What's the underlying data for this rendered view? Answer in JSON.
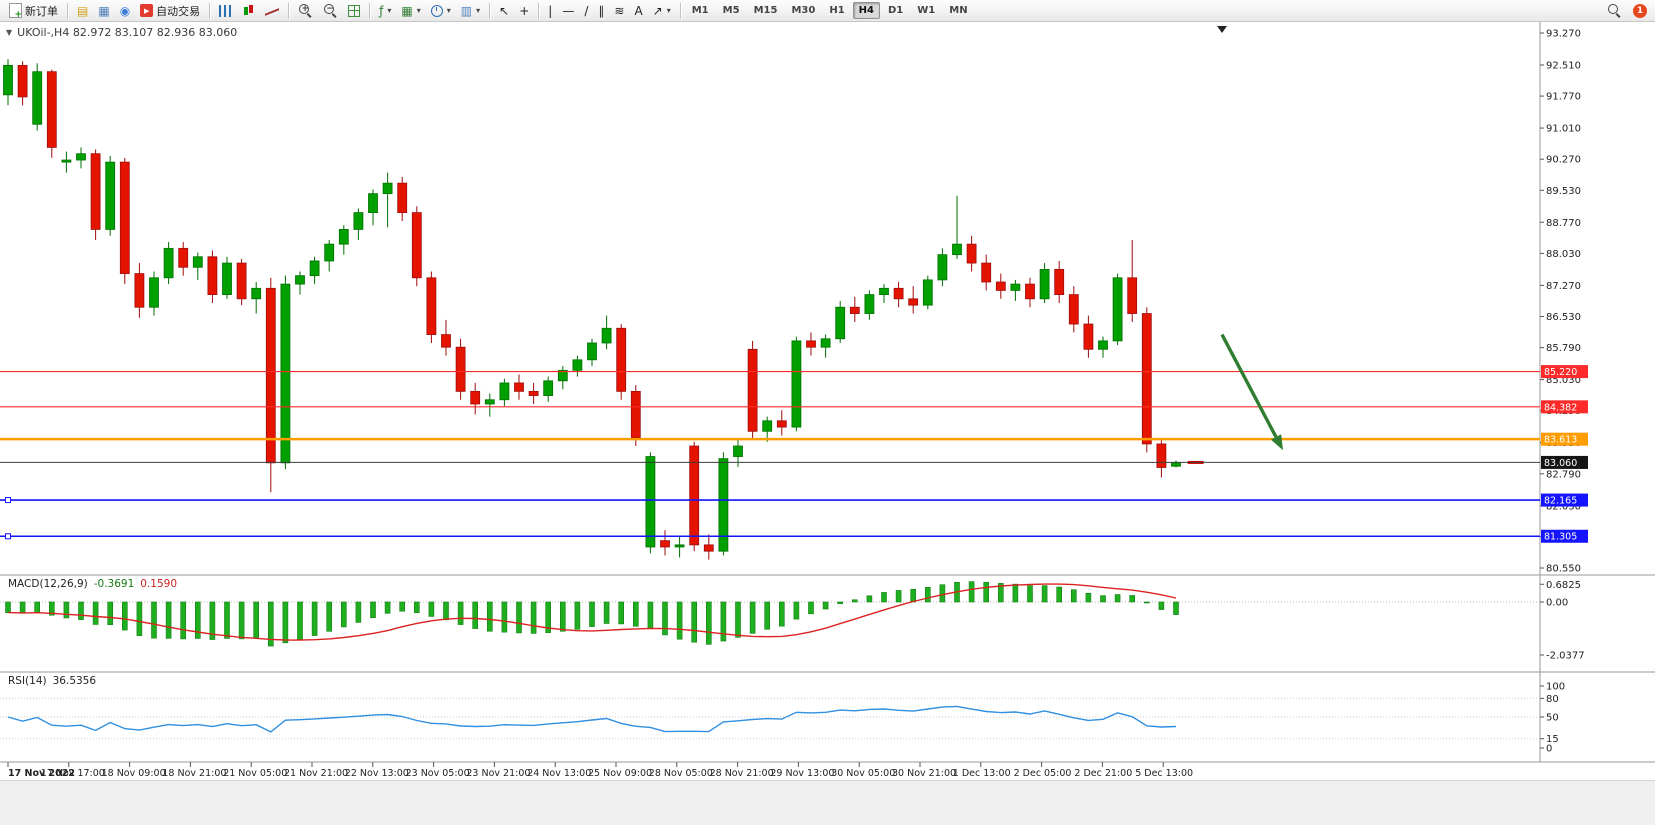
{
  "toolbar": {
    "caret_glyph": "▾",
    "left_items": [
      {
        "kind": "button",
        "name": "new-order-button",
        "shape": "doc",
        "label": "新订单"
      },
      {
        "kind": "divider"
      },
      {
        "kind": "icon",
        "name": "terminal-icon",
        "glyph": "▤",
        "color": "#d4a017"
      },
      {
        "kind": "icon",
        "name": "market-watch-icon",
        "glyph": "▦",
        "color": "#4a7ebb"
      },
      {
        "kind": "icon",
        "name": "community-icon",
        "glyph": "◉",
        "color": "#3b7dd8"
      },
      {
        "kind": "button",
        "name": "autotrading-button",
        "shape": "play-red",
        "label": "自动交易"
      },
      {
        "kind": "divider"
      },
      {
        "kind": "icon",
        "name": "bar-chart-icon",
        "shape": "bars"
      },
      {
        "kind": "icon",
        "name": "candlestick-chart-icon",
        "shape": "candles"
      },
      {
        "kind": "icon",
        "name": "line-chart-icon",
        "shape": "line"
      },
      {
        "kind": "divider"
      },
      {
        "kind": "icon",
        "name": "zoom-in-icon",
        "shape": "zoom-plus"
      },
      {
        "kind": "icon",
        "name": "zoom-out-icon",
        "shape": "zoom-minus"
      },
      {
        "kind": "icon",
        "name": "tile-windows-icon",
        "shape": "grid"
      },
      {
        "kind": "divider"
      },
      {
        "kind": "icon",
        "name": "indicators-icon",
        "glyph": "ƒ",
        "color": "#2e7d32",
        "caret": true
      },
      {
        "kind": "icon",
        "name": "new-chart-icon",
        "glyph": "▦",
        "color": "#2e7d32",
        "caret": true
      },
      {
        "kind": "icon",
        "name": "period-icon",
        "shape": "clock",
        "caret": true
      },
      {
        "kind": "icon",
        "name": "templates-icon",
        "glyph": "▥",
        "color": "#4a7ebb",
        "caret": true
      },
      {
        "kind": "divider"
      },
      {
        "kind": "icon",
        "name": "cursor-icon",
        "glyph": "↖",
        "color": "#222"
      },
      {
        "kind": "icon",
        "name": "crosshair-icon",
        "glyph": "+",
        "color": "#222"
      },
      {
        "kind": "divider"
      },
      {
        "kind": "icon",
        "name": "vertical-line-icon",
        "glyph": "|",
        "color": "#222"
      },
      {
        "kind": "icon",
        "name": "horizontal-line-icon",
        "glyph": "—",
        "color": "#222"
      },
      {
        "kind": "icon",
        "name": "trendline-icon",
        "glyph": "/",
        "color": "#222"
      },
      {
        "kind": "icon",
        "name": "channel-icon",
        "glyph": "∥",
        "color": "#222"
      },
      {
        "kind": "icon",
        "name": "fibonacci-icon",
        "glyph": "≋",
        "color": "#222"
      },
      {
        "kind": "icon",
        "name": "text-icon",
        "glyph": "A",
        "color": "#222"
      },
      {
        "kind": "icon",
        "name": "arrows-icon",
        "glyph": "↗",
        "color": "#222",
        "caret": true
      },
      {
        "kind": "divider"
      }
    ],
    "timeframes": [
      "M1",
      "M5",
      "M15",
      "M30",
      "H1",
      "H4",
      "D1",
      "W1",
      "MN"
    ],
    "active_timeframe": "H4",
    "right_items": [
      {
        "kind": "icon",
        "name": "search-icon",
        "shape": "zoom"
      },
      {
        "kind": "badge",
        "name": "notification-badge",
        "label": "1"
      }
    ]
  },
  "chart": {
    "collapse_glyph": "▼",
    "header": "UKOil-,H4  82.972 83.107 82.936 83.060"
  },
  "chart_data": {
    "type": "candlestick",
    "symbol": "UKOil-",
    "timeframe": "H4",
    "ohlc_header": {
      "open": "82.972",
      "high": "83.107",
      "low": "82.936",
      "close": "83.060"
    },
    "y_axis_range": [
      80.55,
      93.27
    ],
    "y_axis_labels": [
      "93.270",
      "92.510",
      "91.770",
      "91.010",
      "90.270",
      "89.530",
      "88.770",
      "88.030",
      "87.270",
      "86.530",
      "85.790",
      "85.030",
      "84.290",
      "83.530",
      "82.790",
      "82.030",
      "81.290",
      "80.550"
    ],
    "x_axis_labels": [
      "17 Nov 2022",
      "17 Nov 17:00",
      "18 Nov 09:00",
      "18 Nov 21:00",
      "21 Nov 05:00",
      "21 Nov 21:00",
      "22 Nov 13:00",
      "23 Nov 05:00",
      "23 Nov 21:00",
      "24 Nov 13:00",
      "25 Nov 09:00",
      "28 Nov 05:00",
      "28 Nov 21:00",
      "29 Nov 13:00",
      "30 Nov 05:00",
      "30 Nov 21:00",
      "1 Dec 13:00",
      "2 Dec 05:00",
      "2 Dec 21:00",
      "5 Dec 13:00"
    ],
    "bull_color": "#00a000",
    "bear_color": "#e51400",
    "levels": [
      {
        "price": 85.22,
        "label": "85.220",
        "color": "#ff2a2a",
        "width": 1.2
      },
      {
        "price": 84.382,
        "label": "84.382",
        "color": "#ff2a2a",
        "width": 1.2
      },
      {
        "price": 83.613,
        "label": "83.613",
        "color": "#ff9c00",
        "width": 2.5
      },
      {
        "price": 83.06,
        "label": "83.060",
        "color": "#3c3c3c",
        "width": 1,
        "badge": "#151515",
        "is_price": true
      },
      {
        "price": 82.165,
        "label": "82.165",
        "color": "#1414ff",
        "width": 1.6,
        "handle": true
      },
      {
        "price": 81.305,
        "label": "81.305",
        "color": "#1414ff",
        "width": 1.6,
        "handle": true
      }
    ],
    "arrow": {
      "name": "down-arrow",
      "color": "#2f7d2f",
      "from_price": 86.1,
      "to_price": 83.35
    },
    "candles": [
      [
        91.8,
        92.65,
        91.55,
        92.5
      ],
      [
        92.5,
        92.6,
        91.55,
        91.75
      ],
      [
        91.1,
        92.55,
        90.95,
        92.35
      ],
      [
        92.35,
        92.4,
        90.3,
        90.55
      ],
      [
        90.2,
        90.45,
        89.95,
        90.25
      ],
      [
        90.25,
        90.55,
        90.05,
        90.4
      ],
      [
        90.4,
        90.5,
        88.35,
        88.6
      ],
      [
        88.6,
        90.35,
        88.45,
        90.2
      ],
      [
        90.2,
        90.3,
        87.3,
        87.55
      ],
      [
        87.55,
        87.8,
        86.5,
        86.75
      ],
      [
        86.75,
        87.6,
        86.55,
        87.45
      ],
      [
        87.45,
        88.3,
        87.3,
        88.15
      ],
      [
        88.15,
        88.3,
        87.5,
        87.7
      ],
      [
        87.7,
        88.05,
        87.4,
        87.95
      ],
      [
        87.95,
        88.1,
        86.85,
        87.05
      ],
      [
        87.05,
        87.95,
        86.95,
        87.8
      ],
      [
        87.8,
        87.9,
        86.8,
        86.95
      ],
      [
        86.95,
        87.35,
        86.6,
        87.2
      ],
      [
        87.2,
        87.45,
        82.35,
        83.05
      ],
      [
        83.05,
        87.5,
        82.9,
        87.3
      ],
      [
        87.3,
        87.6,
        87.05,
        87.5
      ],
      [
        87.5,
        87.95,
        87.3,
        87.85
      ],
      [
        87.85,
        88.35,
        87.6,
        88.25
      ],
      [
        88.25,
        88.7,
        88.0,
        88.6
      ],
      [
        88.6,
        89.1,
        88.35,
        89.0
      ],
      [
        89.0,
        89.55,
        88.7,
        89.45
      ],
      [
        89.45,
        89.95,
        88.65,
        89.7
      ],
      [
        89.7,
        89.85,
        88.8,
        89.0
      ],
      [
        89.0,
        89.15,
        87.25,
        87.45
      ],
      [
        87.45,
        87.6,
        85.9,
        86.1
      ],
      [
        86.1,
        86.45,
        85.6,
        85.8
      ],
      [
        85.8,
        86.0,
        84.55,
        84.75
      ],
      [
        84.75,
        84.95,
        84.2,
        84.45
      ],
      [
        84.45,
        84.7,
        84.15,
        84.55
      ],
      [
        84.55,
        85.05,
        84.4,
        84.95
      ],
      [
        84.95,
        85.15,
        84.55,
        84.75
      ],
      [
        84.75,
        84.95,
        84.45,
        84.65
      ],
      [
        84.65,
        85.1,
        84.5,
        85.0
      ],
      [
        85.0,
        85.35,
        84.8,
        85.25
      ],
      [
        85.25,
        85.6,
        85.1,
        85.5
      ],
      [
        85.5,
        86.0,
        85.35,
        85.9
      ],
      [
        85.9,
        86.55,
        85.75,
        86.25
      ],
      [
        86.25,
        86.35,
        84.55,
        84.75
      ],
      [
        84.75,
        84.9,
        83.45,
        83.65
      ],
      [
        81.05,
        83.3,
        80.9,
        83.2
      ],
      [
        81.2,
        81.45,
        80.85,
        81.05
      ],
      [
        81.05,
        81.3,
        80.8,
        81.1
      ],
      [
        83.45,
        83.55,
        80.95,
        81.1
      ],
      [
        81.1,
        81.35,
        80.75,
        80.95
      ],
      [
        80.95,
        83.3,
        80.85,
        83.15
      ],
      [
        83.2,
        83.6,
        82.95,
        83.45
      ],
      [
        85.75,
        85.95,
        83.6,
        83.8
      ],
      [
        83.8,
        84.15,
        83.55,
        84.05
      ],
      [
        84.05,
        84.3,
        83.7,
        83.9
      ],
      [
        83.9,
        86.05,
        83.8,
        85.95
      ],
      [
        85.95,
        86.15,
        85.6,
        85.8
      ],
      [
        85.8,
        86.1,
        85.55,
        86.0
      ],
      [
        86.0,
        86.9,
        85.9,
        86.75
      ],
      [
        86.75,
        87.0,
        86.4,
        86.6
      ],
      [
        86.6,
        87.15,
        86.45,
        87.05
      ],
      [
        87.05,
        87.3,
        86.85,
        87.2
      ],
      [
        87.2,
        87.35,
        86.75,
        86.95
      ],
      [
        86.95,
        87.25,
        86.6,
        86.8
      ],
      [
        86.8,
        87.5,
        86.7,
        87.4
      ],
      [
        87.4,
        88.15,
        87.25,
        88.0
      ],
      [
        88.0,
        89.4,
        87.9,
        88.25
      ],
      [
        88.25,
        88.45,
        87.6,
        87.8
      ],
      [
        87.8,
        88.0,
        87.15,
        87.35
      ],
      [
        87.35,
        87.55,
        86.95,
        87.15
      ],
      [
        87.15,
        87.4,
        86.9,
        87.3
      ],
      [
        87.3,
        87.45,
        86.75,
        86.95
      ],
      [
        86.95,
        87.8,
        86.85,
        87.65
      ],
      [
        87.65,
        87.85,
        86.85,
        87.05
      ],
      [
        87.05,
        87.25,
        86.15,
        86.35
      ],
      [
        86.35,
        86.55,
        85.55,
        85.75
      ],
      [
        85.75,
        86.05,
        85.55,
        85.95
      ],
      [
        85.95,
        87.55,
        85.85,
        87.45
      ],
      [
        87.45,
        88.35,
        86.4,
        86.6
      ],
      [
        86.6,
        86.75,
        83.3,
        83.5
      ],
      [
        83.5,
        83.6,
        82.7,
        82.94
      ],
      [
        82.97,
        83.11,
        82.94,
        83.06
      ]
    ],
    "macd": {
      "name": "MACD(12,26,9)",
      "main_value": "-0.3691",
      "signal_value": "0.1590",
      "params": [
        12,
        26,
        9
      ],
      "axis": [
        "0.6825",
        "0.00",
        "-2.0377"
      ],
      "main_color": "#1fae1f",
      "signal_color": "#dd2222"
    },
    "rsi": {
      "name": "RSI(14)",
      "value": "36.5356",
      "period": 14,
      "axis": [
        "100",
        "80",
        "50",
        "15",
        "0"
      ],
      "levels": [
        80,
        50,
        15
      ],
      "line_color": "#2f8fe0"
    }
  }
}
